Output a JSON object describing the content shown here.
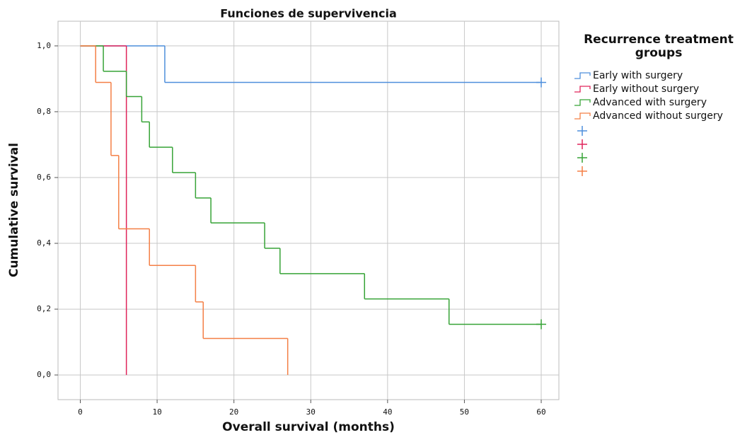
{
  "chart_data": {
    "type": "step",
    "title": "Funciones de supervivencia",
    "x_label": "Overall survival (months)",
    "y_label": "Cumulative survival",
    "legend_title": "Recurrence treatment groups",
    "xlim": [
      -2.9,
      62.3
    ],
    "ylim": [
      -0.075,
      1.075
    ],
    "xticks": [
      0,
      10,
      20,
      30,
      40,
      50,
      60
    ],
    "yticks": [
      {
        "value": 0,
        "label": "0,0"
      },
      {
        "value": 0.2,
        "label": "0,2"
      },
      {
        "value": 0.4,
        "label": "0,4"
      },
      {
        "value": 0.6,
        "label": "0,6"
      },
      {
        "value": 0.8,
        "label": "0,8"
      },
      {
        "value": 1,
        "label": "1,0"
      }
    ],
    "grid": true,
    "series": [
      {
        "name": "Early with surgery",
        "color": "#4e8fdc",
        "x": [
          0,
          11,
          60
        ],
        "values": [
          1,
          0.889,
          0.889
        ],
        "censored_x": [
          60
        ],
        "censored_values": [
          0.889
        ]
      },
      {
        "name": "Early without surgery",
        "color": "#e0245a",
        "x": [
          0,
          6
        ],
        "values": [
          1,
          0
        ]
      },
      {
        "name": "Advanced with surgery",
        "color": "#36a336",
        "x": [
          0,
          3,
          6,
          8,
          9,
          12,
          15,
          17,
          24,
          26,
          37,
          48,
          60
        ],
        "values": [
          1,
          0.923,
          0.846,
          0.769,
          0.692,
          0.615,
          0.538,
          0.462,
          0.385,
          0.308,
          0.231,
          0.154,
          0.154
        ],
        "censored_x": [
          60
        ],
        "censored_values": [
          0.154
        ]
      },
      {
        "name": "Advanced without surgery",
        "color": "#f47f45",
        "x": [
          0,
          2,
          4,
          5,
          9,
          15,
          16,
          27
        ],
        "values": [
          1,
          0.889,
          0.667,
          0.444,
          0.333,
          0.222,
          0.111,
          0
        ]
      }
    ]
  }
}
